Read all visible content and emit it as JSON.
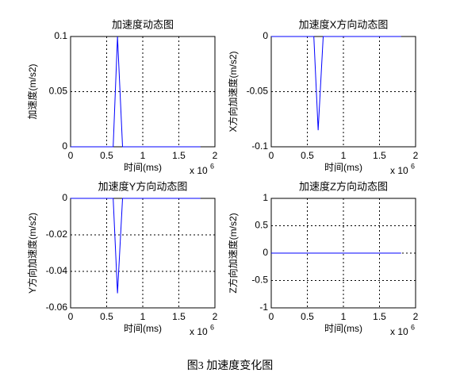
{
  "chart_data": [
    {
      "type": "line",
      "title": "加速度动态图",
      "xlabel": "时间(ms)",
      "ylabel": "加速度(m/s2)",
      "x_scale": {
        "base": "x 10",
        "exponent": "6"
      },
      "x": [
        0,
        0.59,
        0.65,
        0.72,
        1.8
      ],
      "values": [
        0,
        0,
        0.1,
        0,
        0
      ],
      "color": "#0000ff",
      "xlim": [
        0,
        2
      ],
      "xticks": [
        0,
        0.5,
        1,
        1.5,
        2
      ],
      "ylim": [
        0,
        0.1
      ],
      "yticks": [
        0,
        0.05,
        0.1
      ],
      "grid": true
    },
    {
      "type": "line",
      "title": "加速度X方向动态图",
      "xlabel": "时间(ms)",
      "ylabel": "X方向加速度(m/s2)",
      "x_scale": {
        "base": "x 10",
        "exponent": "6"
      },
      "x": [
        0,
        0.59,
        0.65,
        0.72,
        1.8
      ],
      "values": [
        0,
        0,
        -0.085,
        0,
        0
      ],
      "color": "#0000ff",
      "xlim": [
        0,
        2
      ],
      "xticks": [
        0,
        0.5,
        1,
        1.5,
        2
      ],
      "ylim": [
        -0.1,
        0
      ],
      "yticks": [
        -0.1,
        -0.05,
        0
      ],
      "grid": true
    },
    {
      "type": "line",
      "title": "加速度Y方向动态图",
      "xlabel": "时间(ms)",
      "ylabel": "Y方向加速度(m/s2)",
      "x_scale": {
        "base": "x 10",
        "exponent": "6"
      },
      "x": [
        0,
        0.59,
        0.65,
        0.72,
        1.8
      ],
      "values": [
        0,
        0,
        -0.052,
        0,
        0
      ],
      "color": "#0000ff",
      "xlim": [
        0,
        2
      ],
      "xticks": [
        0,
        0.5,
        1,
        1.5,
        2
      ],
      "ylim": [
        -0.06,
        0
      ],
      "yticks": [
        -0.06,
        -0.04,
        -0.02,
        0
      ],
      "grid": true
    },
    {
      "type": "line",
      "title": "加速度Z方向动态图",
      "xlabel": "时间(ms)",
      "ylabel": "Z方向加速度(m/s2)",
      "x_scale": {
        "base": "x 10",
        "exponent": "6"
      },
      "x": [
        0,
        1.8
      ],
      "values": [
        0,
        0
      ],
      "color": "#0000ff",
      "xlim": [
        0,
        2
      ],
      "xticks": [
        0,
        0.5,
        1,
        1.5,
        2
      ],
      "ylim": [
        -1,
        1
      ],
      "yticks": [
        -1,
        -0.5,
        0,
        0.5,
        1
      ],
      "grid": true
    }
  ],
  "caption": "图3 加速度变化图"
}
